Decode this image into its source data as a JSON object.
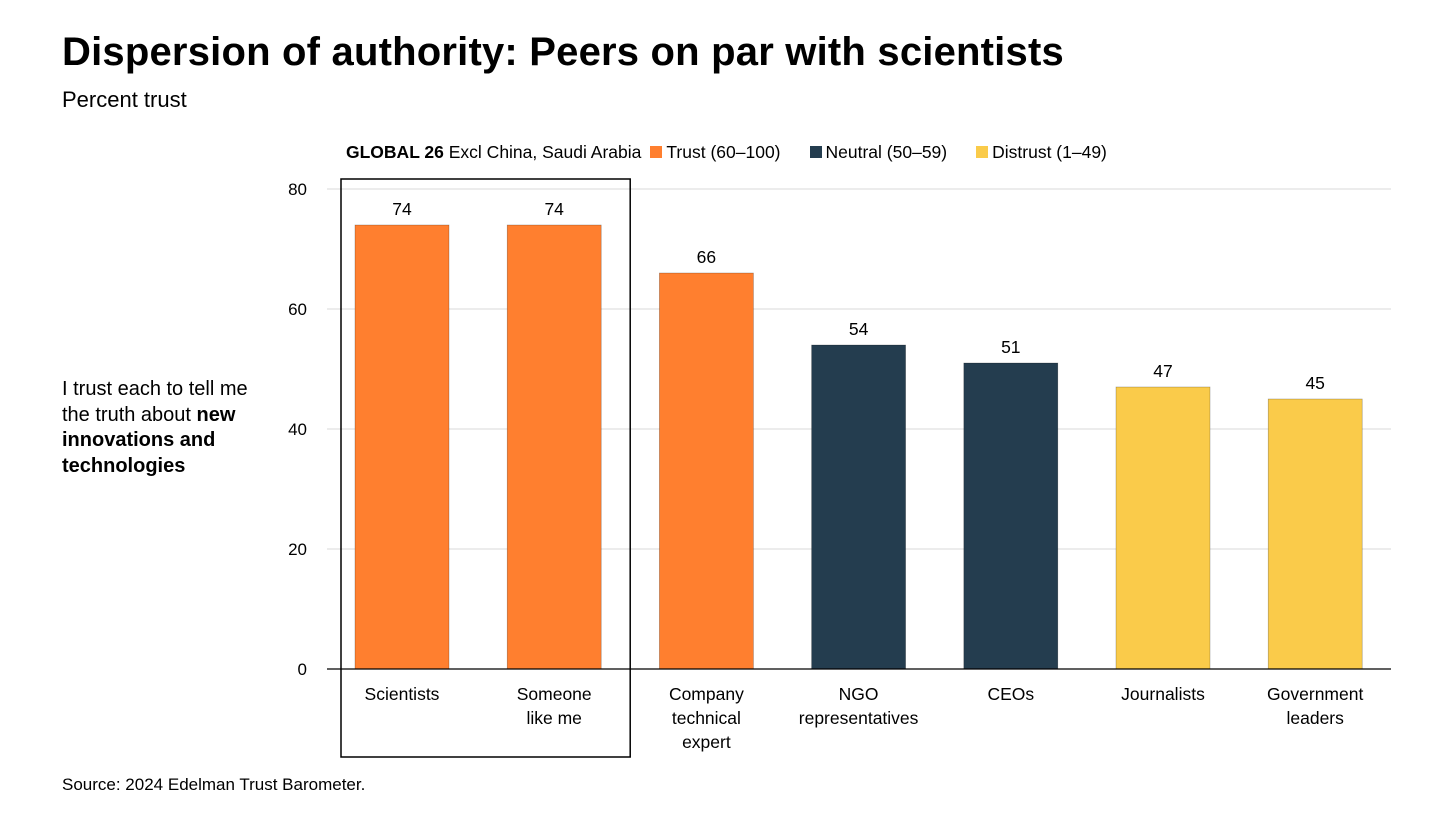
{
  "header": {
    "title": "Dispersion of authority: Peers on par with scientists",
    "subtitle": "Percent trust"
  },
  "side_note": {
    "plain": "I trust each to tell me the truth about ",
    "bold": "new innovations and technologies"
  },
  "source": "Source: 2024 Edelman Trust Barometer.",
  "legend": {
    "scope_bold": "GLOBAL 26",
    "scope_rest": " Excl China, Saudi Arabia",
    "items": [
      {
        "label": "Trust (60–100)",
        "color": "#FF7F2F"
      },
      {
        "label": "Neutral (50–59)",
        "color": "#243D4F"
      },
      {
        "label": "Distrust (1–49)",
        "color": "#FACB4A"
      }
    ]
  },
  "chart_data": {
    "type": "bar",
    "title": "Dispersion of authority: Peers on par with scientists",
    "subtitle": "Percent trust",
    "ylabel": "Percent trust",
    "xlabel": "",
    "ylim": [
      0,
      80
    ],
    "yticks": [
      0,
      20,
      40,
      60,
      80
    ],
    "grid": true,
    "legend_position": "top",
    "categories": [
      [
        "Scientists"
      ],
      [
        "Someone",
        "like me"
      ],
      [
        "Company",
        "technical",
        "expert"
      ],
      [
        "NGO",
        "representatives"
      ],
      [
        "CEOs"
      ],
      [
        "Journalists"
      ],
      [
        "Government",
        "leaders"
      ]
    ],
    "values": [
      74,
      74,
      66,
      54,
      51,
      47,
      45
    ],
    "bar_colors": [
      "#FF7F2F",
      "#FF7F2F",
      "#FF7F2F",
      "#243D4F",
      "#243D4F",
      "#FACB4A",
      "#FACB4A"
    ],
    "highlighted_categories": [
      0,
      1
    ]
  }
}
